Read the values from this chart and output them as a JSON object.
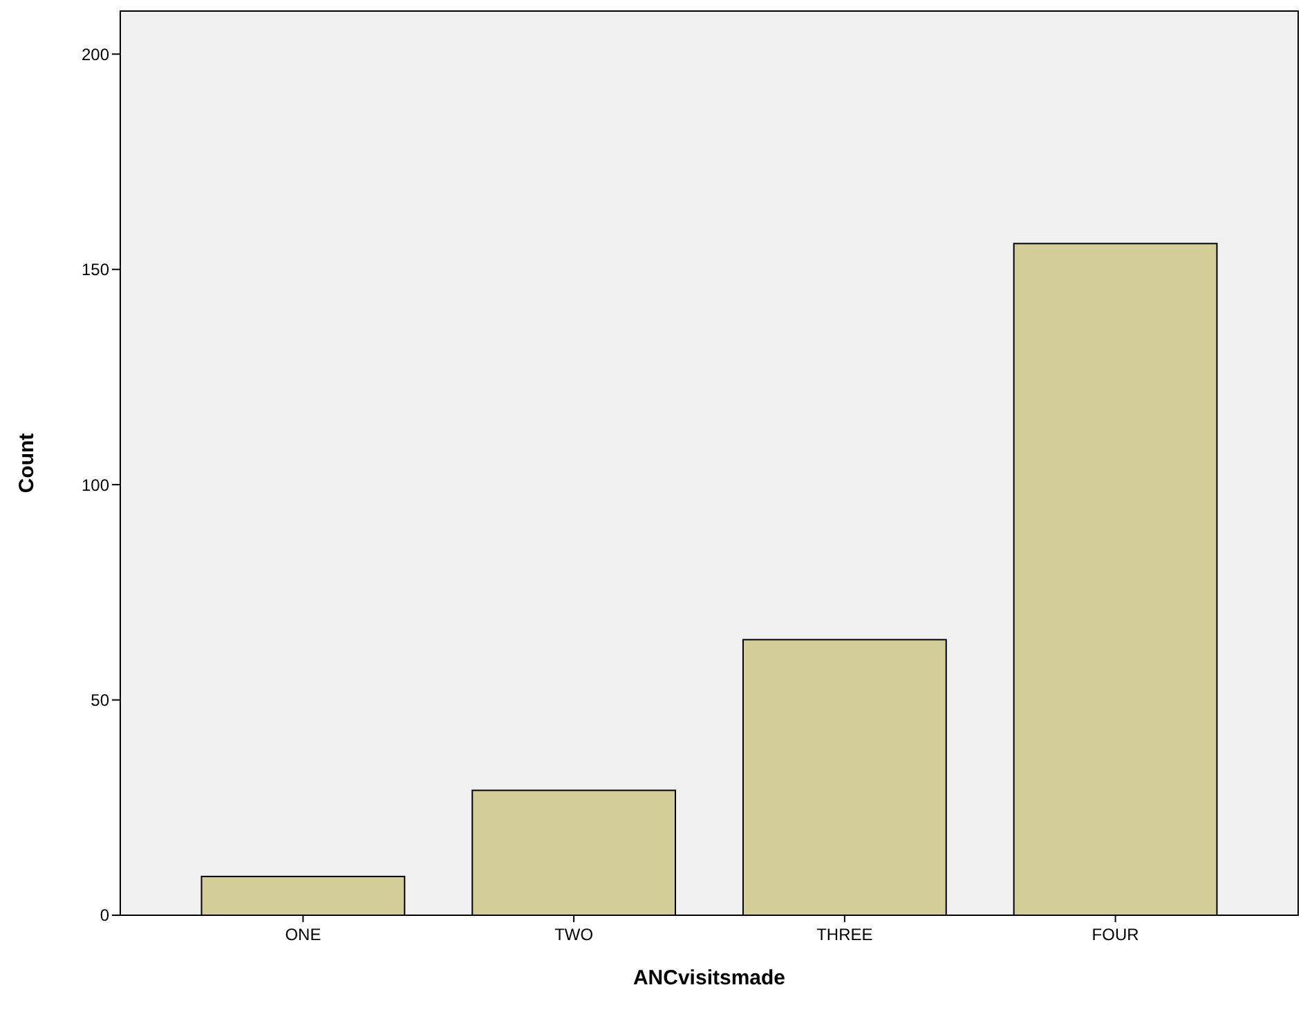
{
  "chart_data": {
    "type": "bar",
    "xlabel": "ANCvisitsmade",
    "ylabel": "Count",
    "categories": [
      "ONE",
      "TWO",
      "THREE",
      "FOUR"
    ],
    "values": [
      9,
      29,
      64,
      156
    ],
    "color": "#d3ce97",
    "ylim": [
      0,
      210
    ],
    "yticks": [
      0,
      50,
      100,
      150,
      200
    ],
    "grid": false
  }
}
